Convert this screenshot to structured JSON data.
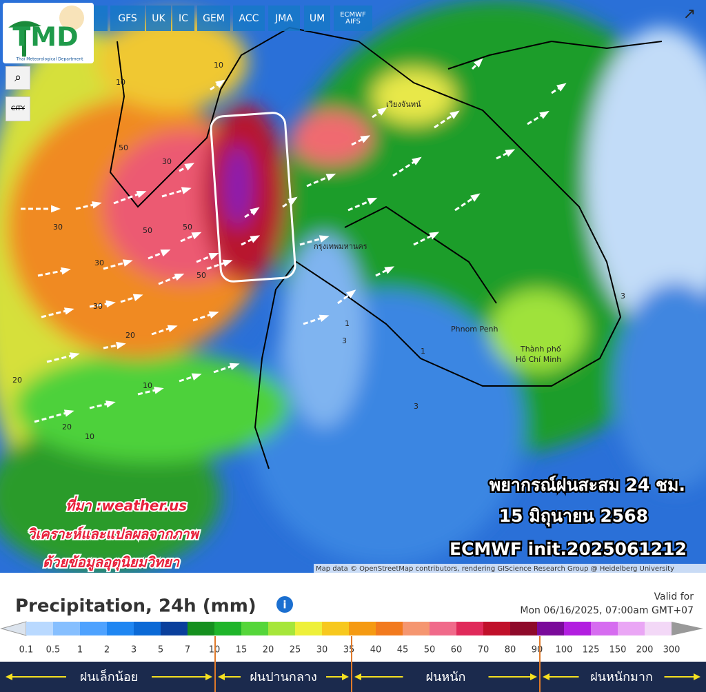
{
  "logo": {
    "title": "TMD",
    "subtitle": "Thai Meteorological Department"
  },
  "models": [
    "GFS",
    "UK",
    "IC",
    "GEM",
    "ACC",
    "JMA",
    "UM",
    "ECMWF\nAIFS"
  ],
  "controls": {
    "city": "CITY"
  },
  "map": {
    "places": [
      "เวียงจันทน์",
      "กรุงเทพมหานคร",
      "Phnom Penh",
      "Thành phố",
      "Hồ Chí Minh"
    ],
    "contour_labels": [
      50,
      50,
      50,
      50,
      30,
      30,
      30,
      30,
      20,
      20,
      20,
      10,
      10,
      10,
      10,
      3,
      3,
      3,
      1,
      1
    ],
    "overlay": {
      "title": "พยากรณ์ฝนสะสม 24 ชม.",
      "date": "15 มิถุนายน 2568",
      "model": "ECMWF init.2025061212"
    },
    "credit": {
      "source": "ที่มา :weather.us",
      "line1": "วิเคราะห์และแปลผลจากภาพ",
      "line2": "ด้วยข้อมูลอุตุนิยมวิทยา"
    },
    "attribution": "Map data © OpenStreetMap contributors, rendering GIScience Research Group @ Heidelberg University"
  },
  "legend": {
    "title": "Precipitation, 24h (mm)",
    "valid_label": "Valid for",
    "valid_time": "Mon 06/16/2025, 07:00am GMT+07",
    "levels": [
      0.1,
      0.5,
      1,
      2,
      3,
      5,
      7,
      10,
      15,
      20,
      25,
      30,
      35,
      40,
      45,
      50,
      60,
      70,
      80,
      90,
      100,
      125,
      150,
      200,
      300
    ],
    "colors": [
      "#b9d9ff",
      "#86bfff",
      "#4ea2ff",
      "#1f86f2",
      "#0b69d6",
      "#0a3f9c",
      "#15901f",
      "#1fb52a",
      "#55d63a",
      "#a6e63a",
      "#eef03a",
      "#f7c81e",
      "#f59a12",
      "#f27a1e",
      "#f59670",
      "#f06a8a",
      "#e02a5a",
      "#c0102a",
      "#8e0a2a",
      "#7a0a9a",
      "#b21ee0",
      "#d66cf0",
      "#eaa6f5",
      "#f3d8f7"
    ],
    "categories": [
      "ฝนเล็กน้อย",
      "ฝนปานกลาง",
      "ฝนหนัก",
      "ฝนหนักมาก"
    ]
  }
}
